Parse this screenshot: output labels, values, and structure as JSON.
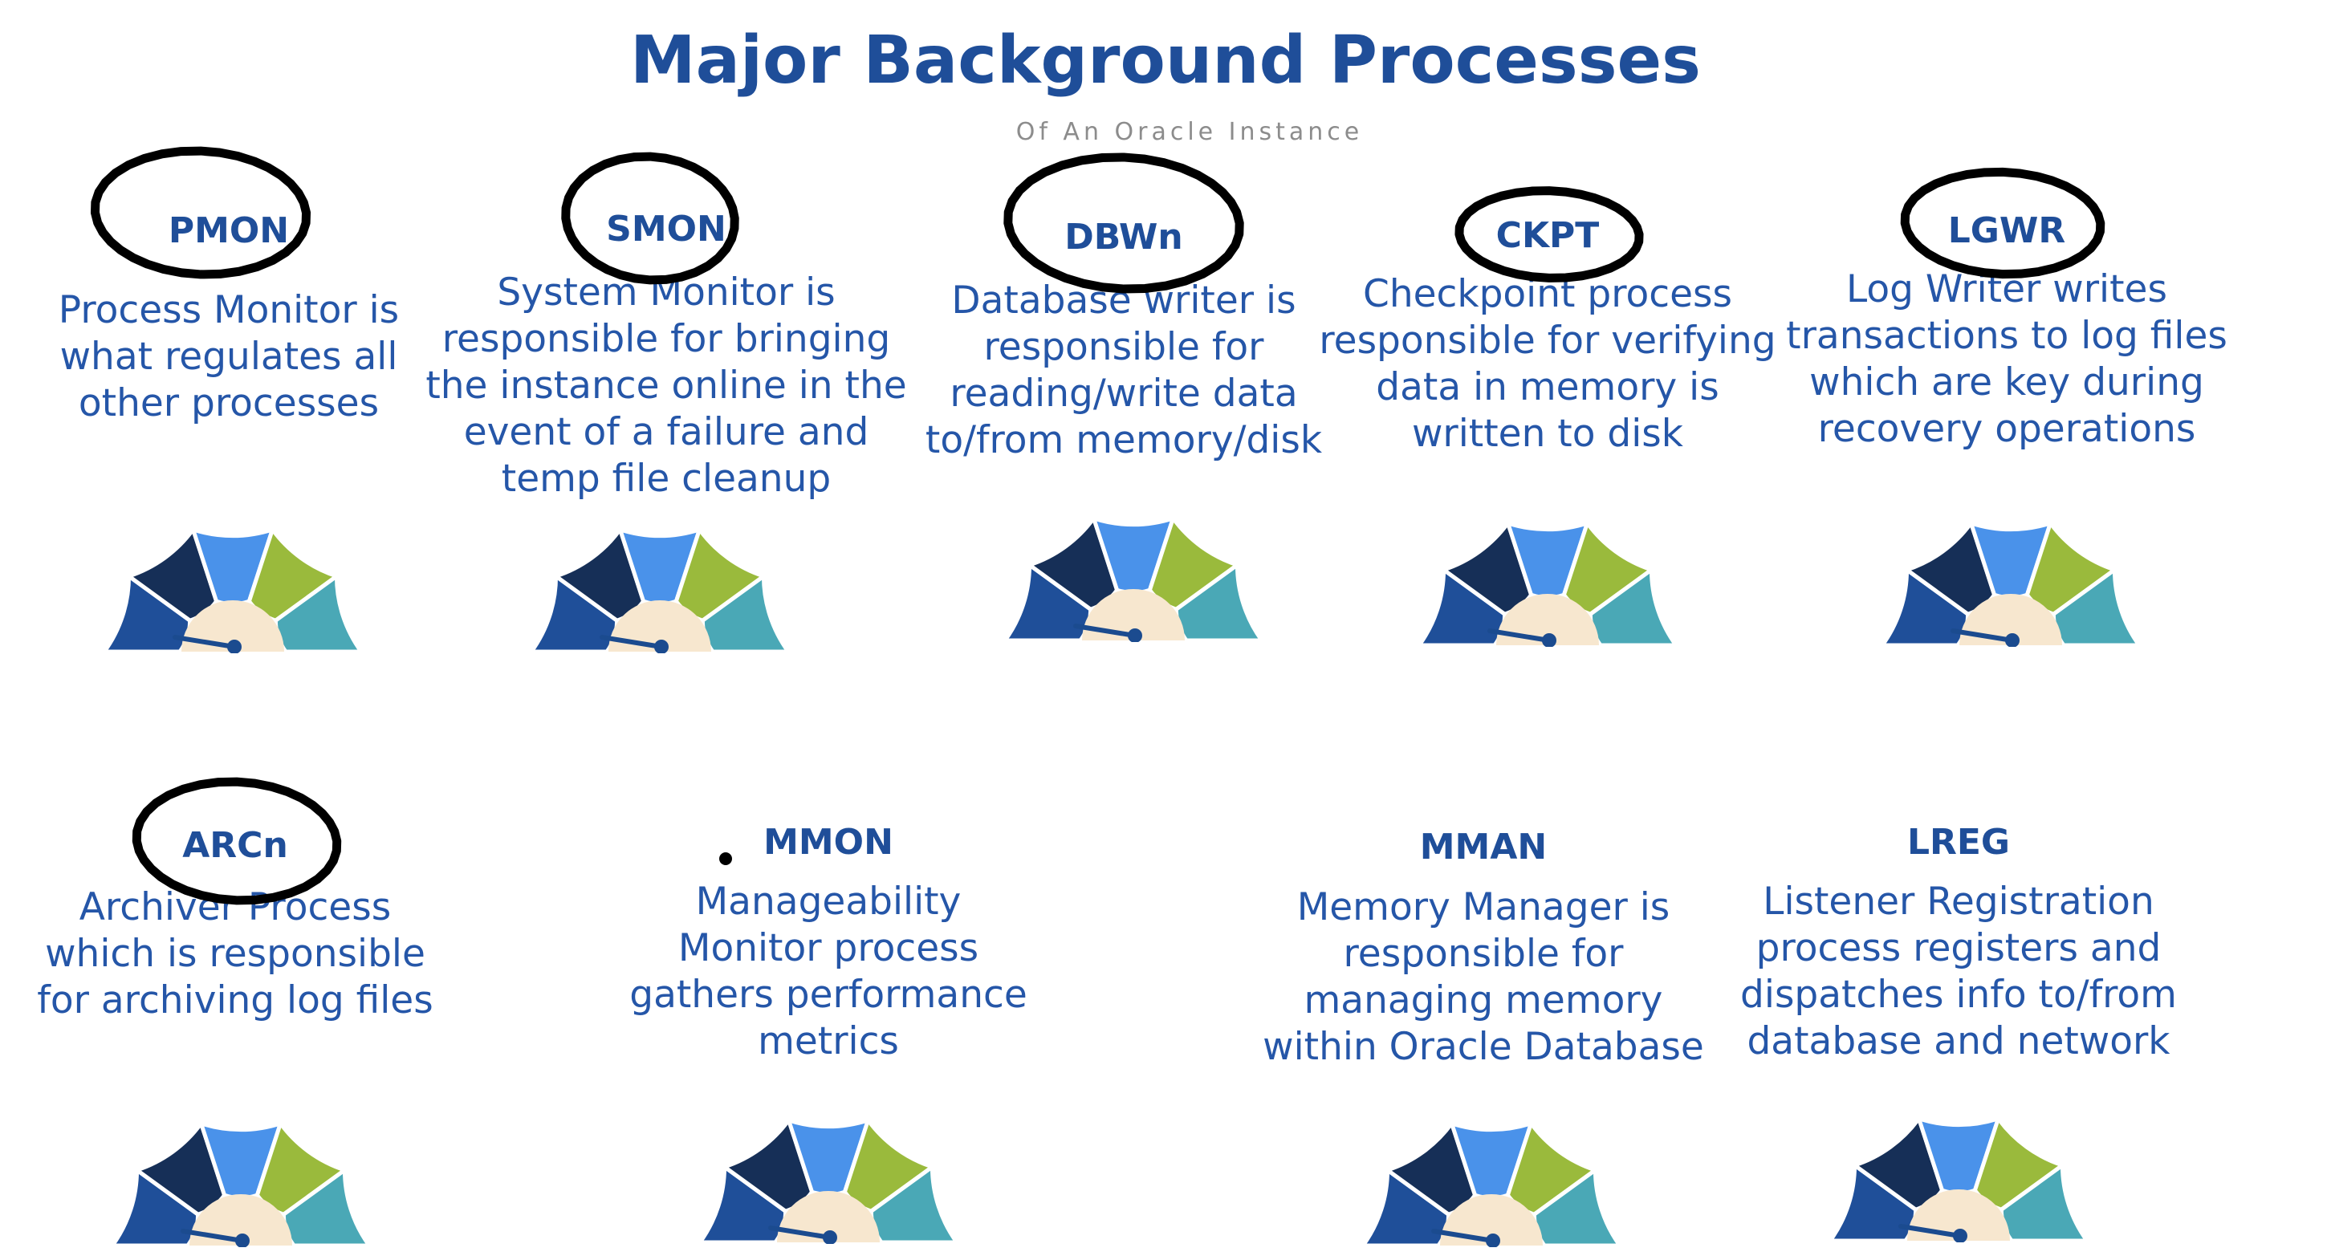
{
  "title": "Major Background Processes",
  "subtitle": "Of An Oracle Instance",
  "colors": {
    "title": "#1f4e99",
    "text": "#2556a8",
    "gauge_navy": "#1f4f99",
    "gauge_dark": "#162f57",
    "gauge_blue": "#4a92ea",
    "gauge_green": "#9aba3c",
    "gauge_teal": "#4aa8b6",
    "gauge_hub": "#f7e7cf",
    "needle": "#1b4b8f",
    "annotation": "#000000"
  },
  "processes": [
    {
      "name": "PMON",
      "circled": true,
      "lines": [
        "Process Monitor is",
        "what regulates all",
        "other processes"
      ]
    },
    {
      "name": "SMON",
      "circled": true,
      "lines": [
        "System Monitor is",
        "responsible for bringing",
        "the instance online in the",
        "event of a failure and",
        "temp file cleanup"
      ]
    },
    {
      "name": "DBWn",
      "circled": true,
      "lines": [
        "Database writer is",
        "responsible for",
        "reading/write data",
        "to/from memory/disk"
      ]
    },
    {
      "name": "CKPT",
      "circled": true,
      "lines": [
        "Checkpoint process",
        "responsible for verifying",
        "data in memory is",
        "written to disk"
      ]
    },
    {
      "name": "LGWR",
      "circled": true,
      "lines": [
        "Log Writer writes",
        "transactions to log files",
        "which are key during",
        "recovery operations"
      ]
    },
    {
      "name": "ARCn",
      "circled": true,
      "lines": [
        "Archiver Process",
        "which is responsible",
        "for archiving log files"
      ]
    },
    {
      "name": "MMON",
      "circled": false,
      "lines": [
        "Manageability",
        "Monitor process",
        "gathers performance",
        "metrics"
      ]
    },
    {
      "name": "MMAN",
      "circled": false,
      "lines": [
        "Memory Manager is",
        "responsible for",
        "managing memory",
        "within Oracle Database"
      ]
    },
    {
      "name": "LREG",
      "circled": false,
      "lines": [
        "Listener Registration",
        "process registers and",
        "dispatches info to/from",
        "database and network"
      ]
    }
  ]
}
